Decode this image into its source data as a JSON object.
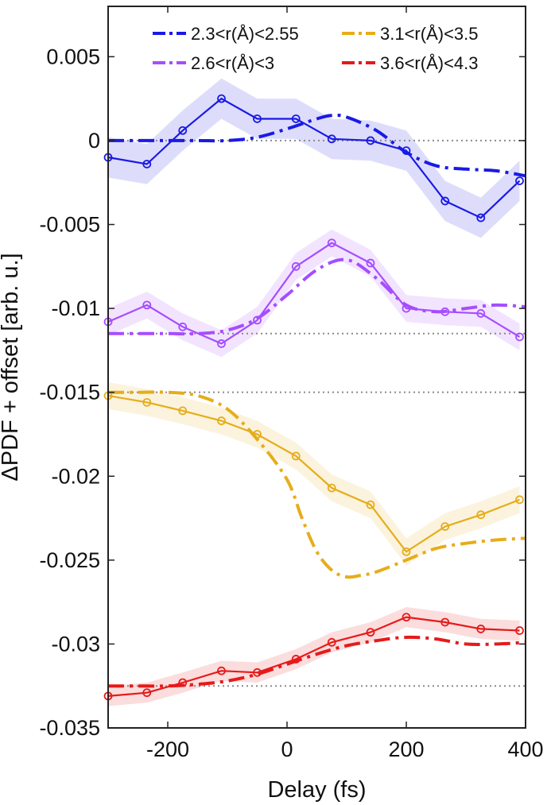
{
  "chart_data": {
    "type": "line",
    "xlabel": "Delay (fs)",
    "ylabel": "ΔPDF + offset [arb. u.]",
    "xlim": [
      -300,
      400
    ],
    "ylim": [
      -0.035,
      0.008
    ],
    "xticks": [
      -200,
      0,
      200,
      400
    ],
    "xtick_labels": [
      "-200",
      "0",
      "200",
      "400"
    ],
    "yticks": [
      0.005,
      0,
      -0.005,
      -0.01,
      -0.015,
      -0.02,
      -0.025,
      -0.03,
      -0.035
    ],
    "ytick_labels": [
      "0.005",
      "0",
      "-0.005",
      "-0.01",
      "-0.015",
      "-0.02",
      "-0.025",
      "-0.03",
      "-0.035"
    ],
    "baselines": [
      0,
      -0.0115,
      -0.015,
      -0.0325
    ],
    "grid": false,
    "legend_position": "top",
    "x": [
      -300,
      -235,
      -175,
      -110,
      -50,
      15,
      75,
      140,
      200,
      265,
      325,
      390
    ],
    "series": [
      {
        "name": "2.3<r(Å)<2.55",
        "color": "#1a1ae6",
        "band_color": "#1a1ae6",
        "values": [
          -0.001,
          -0.0014,
          0.0006,
          0.0025,
          0.0013,
          0.0013,
          0.0001,
          0.0,
          -0.0006,
          -0.0036,
          -0.0046,
          -0.0024
        ],
        "band": [
          0.0012,
          0.0012,
          0.0012,
          0.0012,
          0.0012,
          0.0012,
          0.0012,
          0.0012,
          0.0012,
          0.0012,
          0.0012,
          0.0012
        ],
        "model_x": [
          -300,
          -250,
          -200,
          -150,
          -100,
          -50,
          0,
          50,
          75,
          100,
          150,
          200,
          250,
          300,
          350,
          400
        ],
        "model": [
          0.0,
          0.0,
          0.0,
          0.0,
          0.0,
          0.0002,
          0.0007,
          0.0013,
          0.0015,
          0.0014,
          0.0006,
          -0.0007,
          -0.0015,
          -0.0017,
          -0.0018,
          -0.0021
        ]
      },
      {
        "name": "2.6<r(Å)<3",
        "color": "#a64dff",
        "band_color": "#a64dff",
        "values": [
          -0.0108,
          -0.0098,
          -0.0111,
          -0.0121,
          -0.0107,
          -0.0075,
          -0.0061,
          -0.0073,
          -0.01,
          -0.0102,
          -0.0103,
          -0.0117
        ],
        "band": [
          0.0008,
          0.0008,
          0.0008,
          0.0008,
          0.0008,
          0.0008,
          0.0008,
          0.0008,
          0.0008,
          0.0008,
          0.0008,
          0.0008
        ],
        "model_x": [
          -300,
          -250,
          -200,
          -150,
          -100,
          -50,
          0,
          50,
          100,
          150,
          200,
          250,
          300,
          350,
          400
        ],
        "model": [
          -0.0115,
          -0.0115,
          -0.0115,
          -0.0115,
          -0.0113,
          -0.0106,
          -0.0092,
          -0.0077,
          -0.0071,
          -0.0082,
          -0.0098,
          -0.0102,
          -0.01,
          -0.0098,
          -0.0099
        ]
      },
      {
        "name": "3.1<r(Å)<3.5",
        "color": "#e6ad1a",
        "band_color": "#e6ad1a",
        "values": [
          -0.0152,
          -0.0156,
          -0.0161,
          -0.0167,
          -0.0175,
          -0.0188,
          -0.0207,
          -0.0217,
          -0.0245,
          -0.023,
          -0.0223,
          -0.0214
        ],
        "band": [
          0.0008,
          0.0008,
          0.0008,
          0.0008,
          0.0008,
          0.0008,
          0.0008,
          0.0008,
          0.0008,
          0.0008,
          0.0008,
          0.0008
        ],
        "model_x": [
          -300,
          -250,
          -200,
          -150,
          -100,
          -50,
          0,
          25,
          50,
          75,
          100,
          125,
          150,
          200,
          250,
          300,
          350,
          400
        ],
        "model": [
          -0.015,
          -0.015,
          -0.015,
          -0.0152,
          -0.016,
          -0.0178,
          -0.0202,
          -0.0225,
          -0.0245,
          -0.0256,
          -0.026,
          -0.0259,
          -0.0257,
          -0.025,
          -0.0243,
          -0.024,
          -0.0238,
          -0.0237
        ]
      },
      {
        "name": "3.6<r(Å)<4.3",
        "color": "#e61a1a",
        "band_color": "#e61a1a",
        "values": [
          -0.0331,
          -0.0329,
          -0.0323,
          -0.0316,
          -0.0317,
          -0.0309,
          -0.0299,
          -0.0293,
          -0.0284,
          -0.0287,
          -0.0291,
          -0.0292
        ],
        "band": [
          0.0006,
          0.0006,
          0.0006,
          0.0006,
          0.0006,
          0.0006,
          0.0006,
          0.0006,
          0.0006,
          0.0006,
          0.0006,
          0.0006
        ],
        "model_x": [
          -300,
          -250,
          -200,
          -150,
          -100,
          -50,
          0,
          50,
          100,
          150,
          200,
          250,
          300,
          350,
          400
        ],
        "model": [
          -0.0325,
          -0.0325,
          -0.0325,
          -0.0324,
          -0.0322,
          -0.0318,
          -0.0312,
          -0.0306,
          -0.0301,
          -0.0298,
          -0.0296,
          -0.0297,
          -0.03,
          -0.03,
          -0.0299
        ]
      }
    ]
  }
}
